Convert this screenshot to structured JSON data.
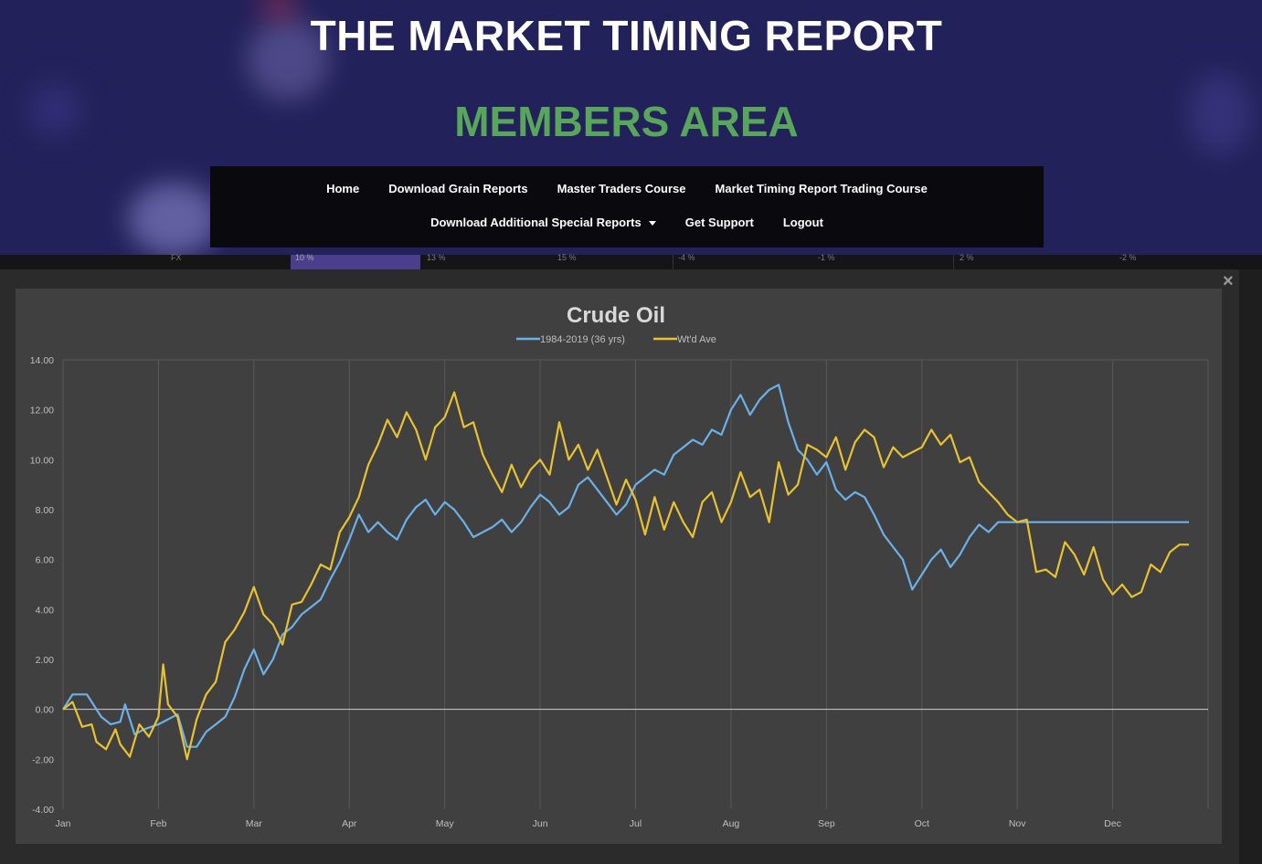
{
  "header": {
    "site_title": "THE MARKET TIMING REPORT",
    "members_title": "MEMBERS AREA",
    "colors": {
      "title": "#ffffff",
      "members": "#58a65c",
      "hero_bg": "#23215a"
    }
  },
  "nav": {
    "row1": [
      "Home",
      "Download Grain Reports",
      "Master Traders Course",
      "Market Timing Report Trading Course"
    ],
    "row2": [
      "Download Additional Special Reports",
      "Get Support",
      "Logout"
    ]
  },
  "ticker": [
    "FX",
    "10 %",
    "13 %",
    "15 %",
    "-4 %",
    "-1 %",
    "2 %",
    "-2 %"
  ],
  "modal": {
    "close_icon": "close-icon",
    "close_symbol": "×"
  },
  "chart_data": {
    "type": "line",
    "title": "Crude Oil",
    "xlabel": "",
    "ylabel": "",
    "ylim": [
      -4,
      14
    ],
    "y_ticks": [
      "14.00",
      "12.00",
      "10.00",
      "8.00",
      "6.00",
      "4.00",
      "2.00",
      "0.00",
      "-2.00",
      "-4.00"
    ],
    "x_ticks": [
      "Jan",
      "Feb",
      "Mar",
      "Apr",
      "May",
      "Jun",
      "Jul",
      "Aug",
      "Sep",
      "Oct",
      "Nov",
      "Dec"
    ],
    "grid": "vertical",
    "legend": "top",
    "x_month_positions": [
      0,
      1,
      2,
      3,
      4,
      5,
      6,
      7,
      8,
      9,
      10,
      11
    ],
    "series": [
      {
        "name": "1984-2019 (36 yrs)",
        "color": "#6cb0e8",
        "x": [
          0,
          0.1,
          0.25,
          0.4,
          0.5,
          0.6,
          0.65,
          0.75,
          0.85,
          1.0,
          1.1,
          1.2,
          1.3,
          1.4,
          1.5,
          1.6,
          1.7,
          1.8,
          1.9,
          2.0,
          2.1,
          2.2,
          2.3,
          2.4,
          2.5,
          2.6,
          2.7,
          2.8,
          2.9,
          3.0,
          3.1,
          3.2,
          3.3,
          3.4,
          3.5,
          3.6,
          3.7,
          3.8,
          3.9,
          4.0,
          4.1,
          4.2,
          4.3,
          4.4,
          4.5,
          4.6,
          4.7,
          4.8,
          4.9,
          5.0,
          5.1,
          5.2,
          5.3,
          5.4,
          5.5,
          5.6,
          5.7,
          5.8,
          5.9,
          6.0,
          6.1,
          6.2,
          6.3,
          6.4,
          6.5,
          6.6,
          6.7,
          6.8,
          6.9,
          7.0,
          7.1,
          7.2,
          7.3,
          7.4,
          7.5,
          7.6,
          7.7,
          7.8,
          7.9,
          8.0,
          8.1,
          8.2,
          8.3,
          8.4,
          8.5,
          8.6,
          8.7,
          8.8,
          8.9,
          9.0,
          9.1,
          9.2,
          9.3,
          9.4,
          9.5,
          9.6,
          9.7,
          9.8,
          9.9,
          10.0,
          10.1,
          10.2,
          10.3,
          10.4,
          10.5,
          10.6,
          10.7,
          10.8,
          10.9,
          11.0,
          11.1,
          11.2,
          11.3,
          11.4,
          11.5,
          11.6,
          11.7,
          11.8
        ],
        "values": [
          0.0,
          0.6,
          0.6,
          -0.3,
          -0.6,
          -0.5,
          0.2,
          -1.0,
          -0.8,
          -0.6,
          -0.4,
          -0.2,
          -1.5,
          -1.5,
          -0.9,
          -0.6,
          -0.3,
          0.5,
          1.6,
          2.4,
          1.4,
          2.0,
          3.0,
          3.3,
          3.8,
          4.1,
          4.4,
          5.2,
          5.9,
          6.8,
          7.8,
          7.1,
          7.5,
          7.1,
          6.8,
          7.6,
          8.1,
          8.4,
          7.8,
          8.3,
          8.0,
          7.5,
          6.9,
          7.1,
          7.3,
          7.6,
          7.1,
          7.5,
          8.1,
          8.6,
          8.3,
          7.8,
          8.1,
          9.0,
          9.3,
          8.8,
          8.3,
          7.8,
          8.2,
          9.0,
          9.3,
          9.6,
          9.4,
          10.2,
          10.5,
          10.8,
          10.6,
          11.2,
          11.0,
          12.0,
          12.6,
          11.8,
          12.4,
          12.8,
          13.0,
          11.5,
          10.4,
          10.0,
          9.4,
          9.9,
          8.8,
          8.4,
          8.7,
          8.5,
          7.8,
          7.0,
          6.5,
          6.0,
          4.8,
          5.4,
          6.0,
          6.4,
          5.7,
          6.2,
          6.9,
          7.4,
          7.1,
          7.5,
          7.5,
          7.5,
          7.5,
          7.5,
          7.5,
          7.5,
          7.5,
          7.5,
          7.5,
          7.5,
          7.5,
          7.5,
          7.5,
          7.5,
          7.5,
          7.5,
          7.5,
          7.5,
          7.5,
          7.5
        ]
      },
      {
        "name": "Wt'd Ave",
        "color": "#e8c232",
        "x": [],
        "values": []
      }
    ]
  }
}
